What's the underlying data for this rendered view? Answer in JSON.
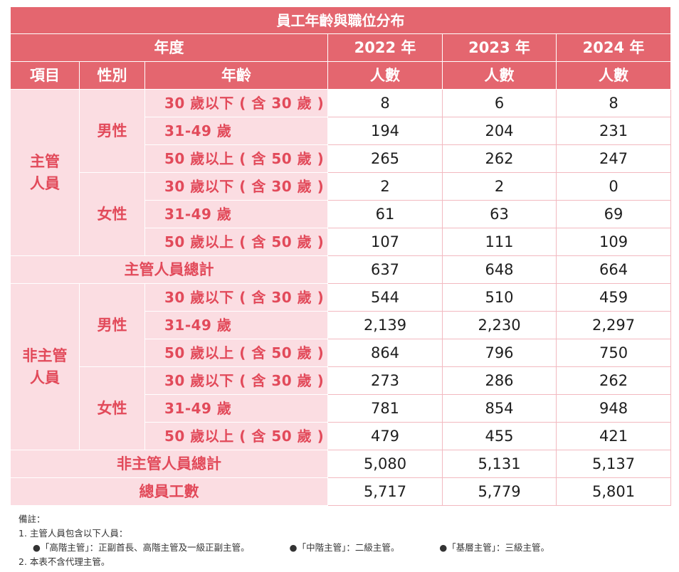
{
  "table": {
    "title": "員工年齡與職位分布",
    "year_label": "年度",
    "years": [
      "2022 年",
      "2023 年",
      "2024 年"
    ],
    "col_item": "項目",
    "col_gender": "性別",
    "col_age": "年齡",
    "col_unit": "人數",
    "groups": [
      {
        "name": "主管\n人員",
        "genders": [
          {
            "name": "男性",
            "rows": [
              {
                "age": "30 歲以下 ( 含 30 歲 )",
                "v": [
                  "8",
                  "6",
                  "8"
                ]
              },
              {
                "age": "31-49 歲",
                "v": [
                  "194",
                  "204",
                  "231"
                ]
              },
              {
                "age": "50 歲以上 ( 含 50 歲 )",
                "v": [
                  "265",
                  "262",
                  "247"
                ]
              }
            ]
          },
          {
            "name": "女性",
            "rows": [
              {
                "age": "30 歲以下 ( 含 30 歲 )",
                "v": [
                  "2",
                  "2",
                  "0"
                ]
              },
              {
                "age": "31-49 歲",
                "v": [
                  "61",
                  "63",
                  "69"
                ]
              },
              {
                "age": "50 歲以上 ( 含 50 歲 )",
                "v": [
                  "107",
                  "111",
                  "109"
                ]
              }
            ]
          }
        ],
        "total_label": "主管人員總計",
        "total": [
          "637",
          "648",
          "664"
        ]
      },
      {
        "name": "非主管\n人員",
        "genders": [
          {
            "name": "男性",
            "rows": [
              {
                "age": "30 歲以下 ( 含 30 歲 )",
                "v": [
                  "544",
                  "510",
                  "459"
                ]
              },
              {
                "age": "31-49 歲",
                "v": [
                  "2,139",
                  "2,230",
                  "2,297"
                ]
              },
              {
                "age": "50 歲以上 ( 含 50 歲 )",
                "v": [
                  "864",
                  "796",
                  "750"
                ]
              }
            ]
          },
          {
            "name": "女性",
            "rows": [
              {
                "age": "30 歲以下 ( 含 30 歲 )",
                "v": [
                  "273",
                  "286",
                  "262"
                ]
              },
              {
                "age": "31-49 歲",
                "v": [
                  "781",
                  "854",
                  "948"
                ]
              },
              {
                "age": "50 歲以上 ( 含 50 歲 )",
                "v": [
                  "479",
                  "455",
                  "421"
                ]
              }
            ]
          }
        ],
        "total_label": "非主管人員總計",
        "total": [
          "5,080",
          "5,131",
          "5,137"
        ]
      }
    ],
    "grand_total_label": "總員工數",
    "grand_total": [
      "5,717",
      "5,779",
      "5,801"
    ]
  },
  "notes": {
    "heading": "備註：",
    "line1": "1. 主管人員包含以下人員：",
    "bullets": [
      "●「高階主管」：正副首長、高階主管及一級正副主管。",
      "●「中階主管」：二級主管。",
      "●「基層主管」：三級主管。"
    ],
    "line2": "2. 本表不含代理主管。"
  },
  "colors": {
    "header_bg": "#e4666f",
    "label_bg": "#fbdde2",
    "label_text": "#e24a5a"
  }
}
